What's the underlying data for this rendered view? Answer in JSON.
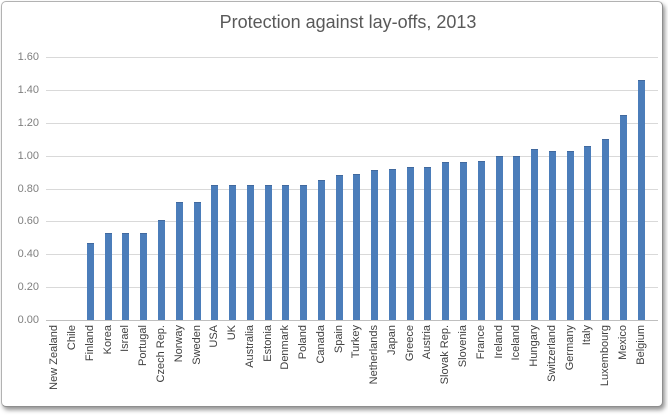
{
  "window": {
    "background_color": "#ffffff",
    "frame_border_color": "#b2b2b2"
  },
  "chart_data": {
    "type": "bar",
    "title": "Protection against lay-offs, 2013",
    "categories": [
      "New Zealand",
      "Chile",
      "Finland",
      "Korea",
      "Israel",
      "Portugal",
      "Czech Rep.",
      "Norway",
      "Sweden",
      "USA",
      "UK",
      "Australia",
      "Estonia",
      "Denmark",
      "Poland",
      "Canada",
      "Spain",
      "Turkey",
      "Netherlands",
      "Japan",
      "Greece",
      "Austria",
      "Slovak Rep.",
      "Slovenia",
      "France",
      "Ireland",
      "Iceland",
      "Hungary",
      "Switzerland",
      "Germany",
      "Italy",
      "Luxembourg",
      "Mexico",
      "Belgium"
    ],
    "values": [
      0.0,
      0.0,
      0.47,
      0.53,
      0.53,
      0.53,
      0.61,
      0.72,
      0.72,
      0.82,
      0.82,
      0.82,
      0.82,
      0.82,
      0.82,
      0.85,
      0.88,
      0.89,
      0.91,
      0.92,
      0.93,
      0.93,
      0.96,
      0.96,
      0.97,
      1.0,
      1.0,
      1.04,
      1.03,
      1.03,
      1.06,
      1.1,
      1.25,
      1.46
    ],
    "xlabel": "",
    "ylabel": "",
    "ylim": [
      0,
      1.6
    ],
    "ytick_labels": [
      "0.00",
      "0.20",
      "0.40",
      "0.60",
      "0.80",
      "1.00",
      "1.20",
      "1.40",
      "1.60"
    ],
    "grid": true,
    "legend_position": "none",
    "bar_color": "#4b7dba",
    "bar_border_color": "#41699e",
    "gridline_color": "#d9d9d9",
    "axis_line_color": "#bfbfbf",
    "title_color": "#595959",
    "x_label_color": "#404040",
    "y_label_color": "#7f7f7f"
  }
}
